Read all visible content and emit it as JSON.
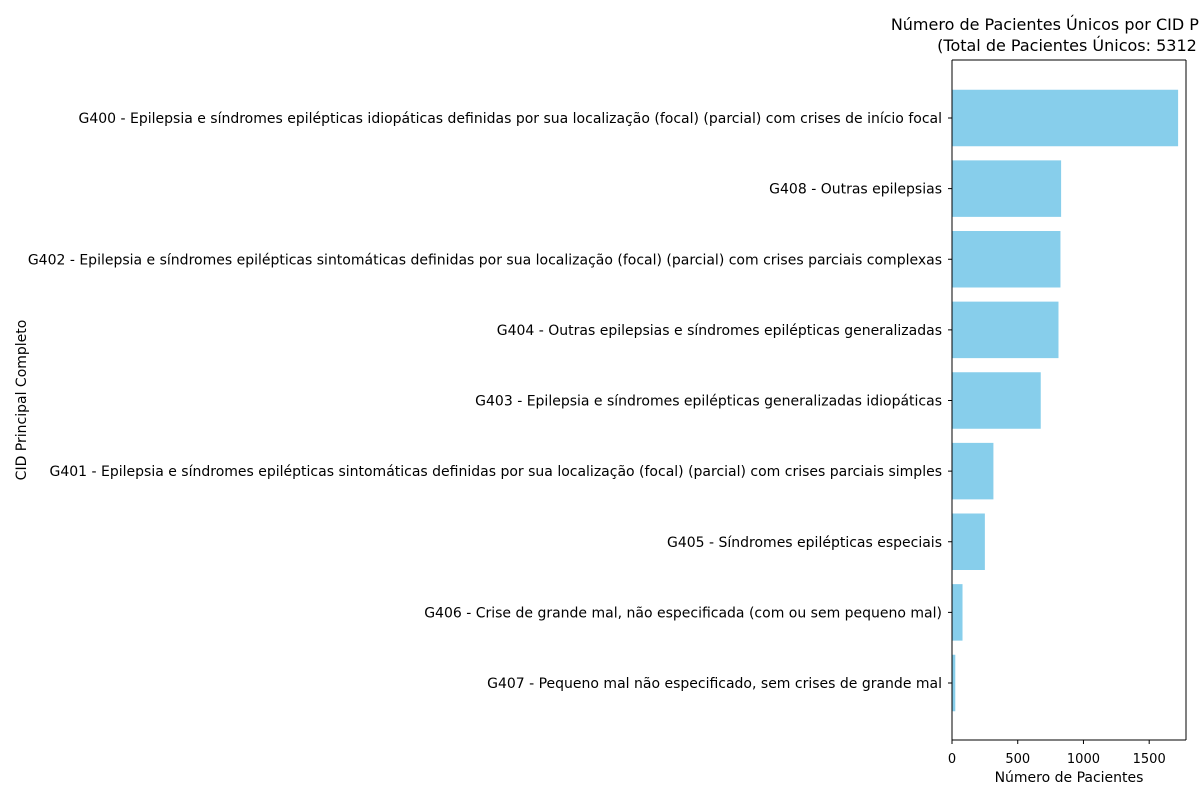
{
  "chart_data": {
    "type": "bar",
    "orientation": "horizontal",
    "title_line1": "Número de Pacientes Únicos por CID Princip",
    "title_line2": "(Total de Pacientes Únicos: 5312",
    "xlabel": "Número de Pacientes",
    "ylabel": "CID Principal Completo",
    "xlim": [
      0,
      1780
    ],
    "xticks": [
      0,
      500,
      1000,
      1500
    ],
    "xtick_labels": [
      "0",
      "500",
      "1000",
      "1500"
    ],
    "bar_color": "#87ceeb",
    "grid": false,
    "categories": [
      "G400 - Epilepsia e síndromes epilépticas idiopáticas definidas por sua localização (focal) (parcial) com crises de início focal",
      "G408 - Outras epilepsias",
      "G402 - Epilepsia e síndromes epilépticas sintomáticas definidas por sua localização (focal) (parcial) com crises parciais complexas",
      "G404 - Outras epilepsias e síndromes epilépticas generalizadas",
      "G403 - Epilepsia e síndromes epilépticas generalizadas idiopáticas",
      "G401 - Epilepsia e síndromes epilépticas sintomáticas definidas por sua localização (focal) (parcial) com crises parciais simples",
      "G405 - Síndromes epilépticas especiais",
      "G406 - Crise de grande mal, não especificada (com ou sem pequeno mal)",
      "G407 - Pequeno mal não especificado, sem crises de grande mal"
    ],
    "values": [
      1720,
      830,
      825,
      810,
      675,
      315,
      250,
      80,
      25
    ]
  }
}
